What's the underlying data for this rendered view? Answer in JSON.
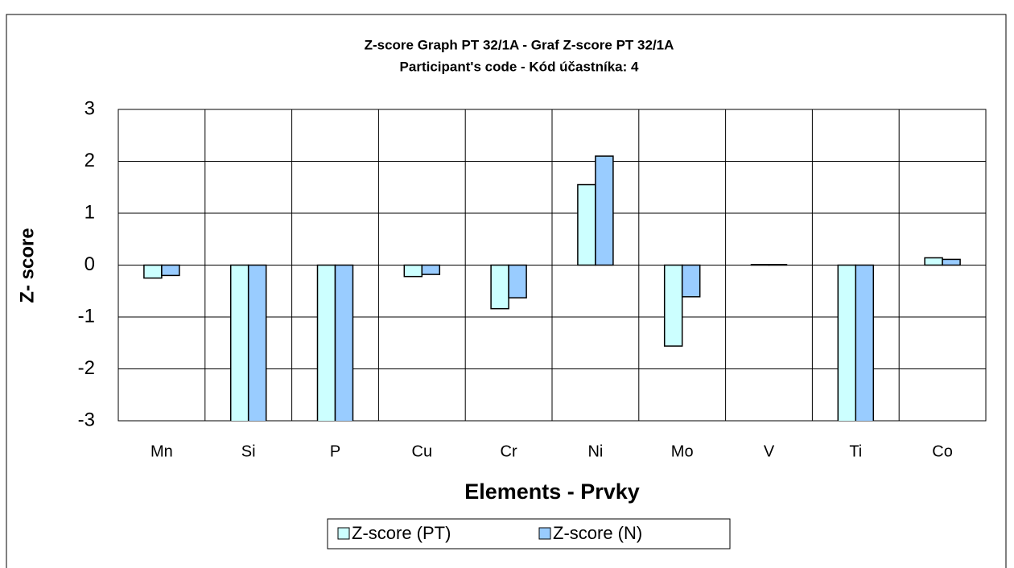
{
  "chart_data": {
    "type": "bar",
    "title": "Z-score Graph PT 32/1A - Graf Z-score PT 32/1A",
    "subtitle": "Participant's code - Kód účastníka:  4",
    "x_label": "Elements - Prvky",
    "y_label": "Z- score",
    "categories": [
      "Mn",
      "Si",
      "P",
      "Cu",
      "Cr",
      "Ni",
      "Mo",
      "V",
      "Ti",
      "Co"
    ],
    "series": [
      {
        "name": "Z-score (PT)",
        "color": "#ccffff",
        "values": [
          -0.25,
          -3.5,
          -3.5,
          -0.22,
          -0.84,
          1.55,
          -1.56,
          0.01,
          -3.5,
          0.14
        ]
      },
      {
        "name": "Z-score (N)",
        "color": "#99ccff",
        "values": [
          -0.2,
          -3.5,
          -3.5,
          -0.18,
          -0.63,
          2.1,
          -0.61,
          0.01,
          -3.5,
          0.11
        ]
      }
    ],
    "ylim": [
      -3,
      3
    ],
    "yticks": [
      -3,
      -2,
      -1,
      0,
      1,
      2,
      3
    ],
    "grid": true,
    "legend": "bottom"
  }
}
